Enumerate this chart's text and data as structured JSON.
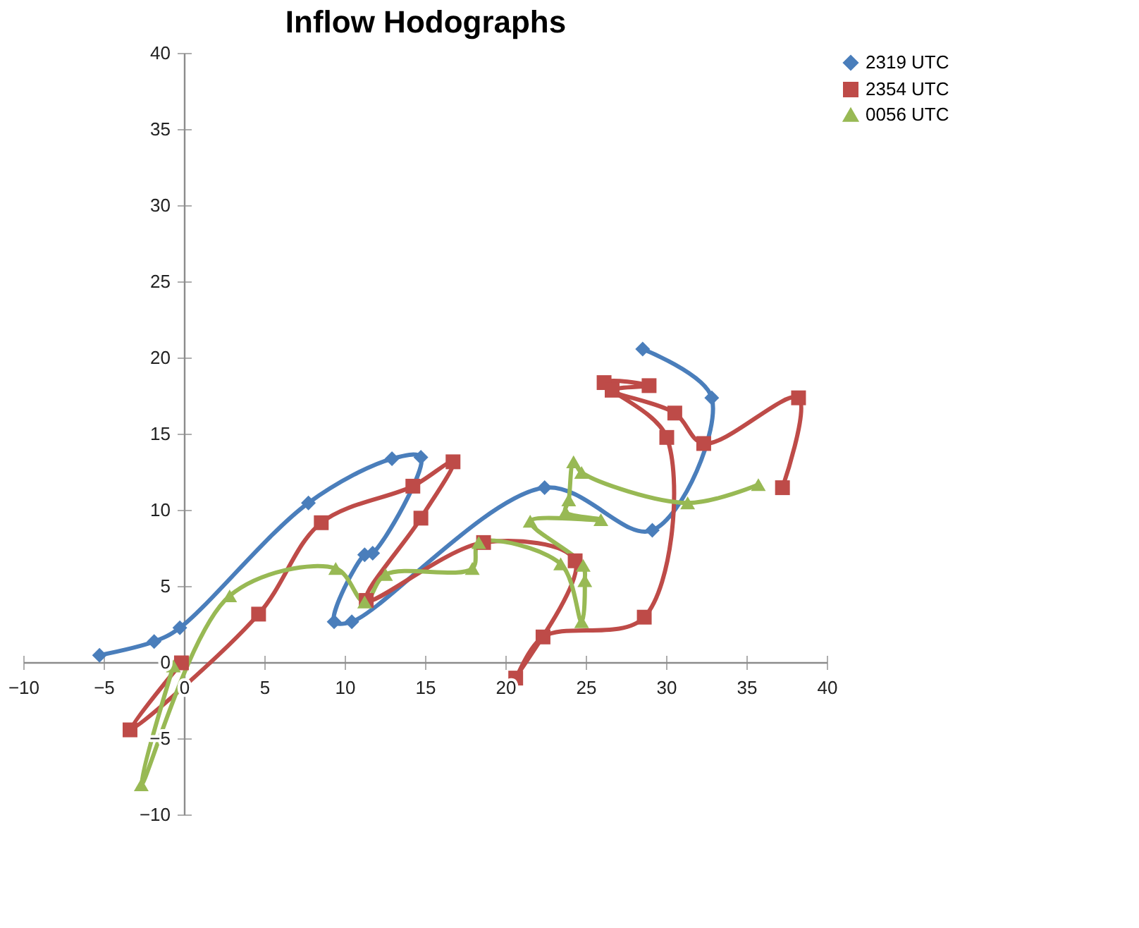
{
  "chart_data": {
    "type": "line",
    "title": "Inflow Hodographs",
    "xlim": [
      -10,
      40
    ],
    "xticks": [
      -10,
      -5,
      0,
      5,
      10,
      15,
      20,
      25,
      30,
      35,
      40
    ],
    "ylim": [
      -10,
      40
    ],
    "yticks": [
      -10,
      -5,
      0,
      5,
      10,
      15,
      20,
      25,
      30,
      35,
      40
    ],
    "grid": false,
    "legend": "right",
    "line_style": "solid",
    "series": [
      {
        "name": "2319 UTC",
        "color": "#4a7ebb",
        "marker": "diamond",
        "x": [
          -5.3,
          -1.9,
          -0.3,
          7.7,
          12.9,
          14.7,
          11.7,
          11.2,
          9.3,
          10.4,
          22.4,
          29.1,
          32.8,
          28.5
        ],
        "values": [
          0.5,
          1.4,
          2.3,
          10.5,
          13.4,
          13.5,
          7.2,
          7.1,
          2.7,
          2.7,
          11.5,
          8.7,
          17.4,
          20.6
        ]
      },
      {
        "name": "2354 UTC",
        "color": "#be4b48",
        "marker": "square",
        "x": [
          -0.2,
          -3.4,
          4.6,
          8.5,
          14.2,
          16.7,
          14.7,
          11.3,
          18.6,
          24.3,
          20.6,
          22.3,
          28.6,
          30.0,
          26.1,
          28.9,
          26.6,
          30.5,
          32.3,
          38.2,
          37.2
        ],
        "values": [
          0.0,
          -4.4,
          3.2,
          9.2,
          11.6,
          13.2,
          9.5,
          4.1,
          7.9,
          6.7,
          -1.0,
          1.7,
          3.0,
          14.8,
          18.4,
          18.2,
          17.9,
          16.4,
          14.4,
          17.4,
          11.5
        ]
      },
      {
        "name": "0056 UTC",
        "color": "#98b954",
        "marker": "triangle",
        "x": [
          -0.7,
          -2.7,
          2.8,
          9.4,
          11.2,
          12.5,
          17.9,
          18.3,
          23.4,
          24.7,
          24.9,
          24.8,
          21.5,
          25.9,
          23.7,
          23.9,
          24.2,
          24.7,
          31.3,
          35.7
        ],
        "values": [
          -0.2,
          -8.0,
          4.4,
          6.2,
          4.0,
          5.8,
          6.2,
          7.9,
          6.5,
          2.7,
          5.4,
          6.4,
          9.3,
          9.4,
          9.9,
          10.7,
          13.2,
          12.5,
          10.5,
          11.7
        ]
      }
    ]
  }
}
